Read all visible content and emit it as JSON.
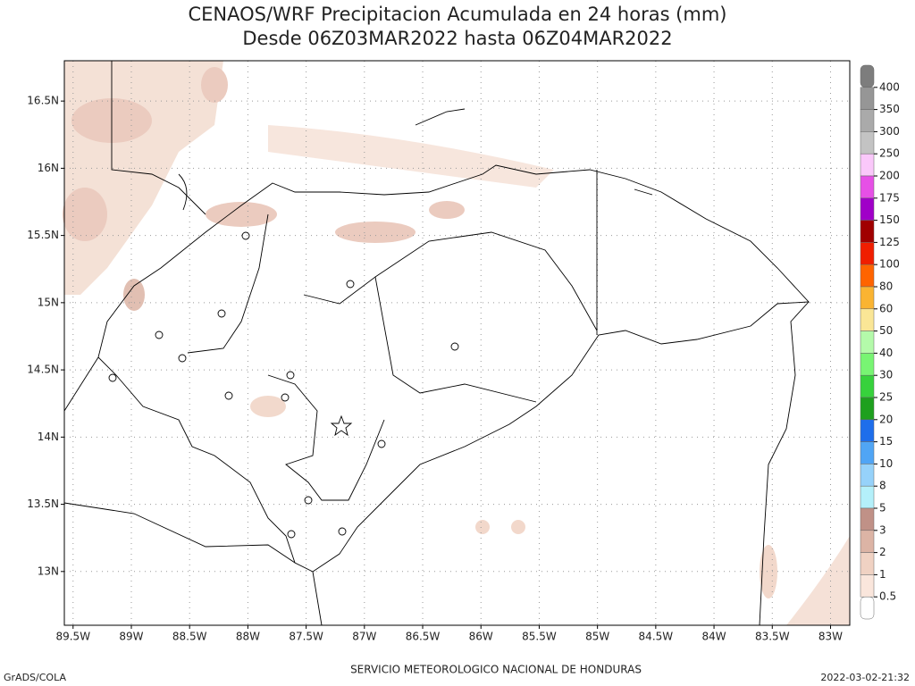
{
  "map": {
    "title": "CENAOS/WRF Precipitacion Acumulada en 24 horas (mm)",
    "subtitle": "Desde 06Z03MAR2022 hasta 06Z04MAR2022",
    "xlim": [
      -89.575,
      -82.835
    ],
    "ylim": [
      12.6,
      16.8
    ],
    "xticks": [
      {
        "value": -89.5,
        "label": "89.5W"
      },
      {
        "value": -89,
        "label": "89W"
      },
      {
        "value": -88.5,
        "label": "88.5W"
      },
      {
        "value": -88,
        "label": "88W"
      },
      {
        "value": -87.5,
        "label": "87.5W"
      },
      {
        "value": -87,
        "label": "87W"
      },
      {
        "value": -86.5,
        "label": "86.5W"
      },
      {
        "value": -86,
        "label": "86W"
      },
      {
        "value": -85.5,
        "label": "85.5W"
      },
      {
        "value": -85,
        "label": "85W"
      },
      {
        "value": -84.5,
        "label": "84.5W"
      },
      {
        "value": -84,
        "label": "84W"
      },
      {
        "value": -83.5,
        "label": "83.5W"
      },
      {
        "value": -83,
        "label": "83W"
      }
    ],
    "yticks": [
      {
        "value": 13,
        "label": "13N"
      },
      {
        "value": 13.5,
        "label": "13.5N"
      },
      {
        "value": 14,
        "label": "14N"
      },
      {
        "value": 14.5,
        "label": "14.5N"
      },
      {
        "value": 15,
        "label": "15N"
      },
      {
        "value": 15.5,
        "label": "15.5N"
      },
      {
        "value": 16,
        "label": "16N"
      },
      {
        "value": 16.5,
        "label": "16.5N"
      }
    ],
    "grid": true,
    "colorbar": {
      "levels": [
        400,
        350,
        300,
        250,
        200,
        175,
        150,
        125,
        100,
        80,
        60,
        50,
        40,
        30,
        25,
        20,
        15,
        10,
        8,
        5,
        3,
        2,
        1,
        0.5
      ],
      "colors": [
        "#7d7d7d",
        "#969696",
        "#aaaaaa",
        "#c3c3c3",
        "#fac8fa",
        "#e650e6",
        "#a000c8",
        "#a00000",
        "#f01e00",
        "#ff6400",
        "#fab432",
        "#fae696",
        "#b4faaa",
        "#78f573",
        "#37d23c",
        "#1ea01e",
        "#1e6eeb",
        "#50a5f5",
        "#96d2fa",
        "#b4f0fa",
        "#c09187",
        "#dcb4a5",
        "#f0d2c3",
        "#fae6dc",
        "#ffffff"
      ]
    },
    "footer_left": "GrADS/COLA",
    "footer_center": "SERVICIO METEOROLOGICO NACIONAL DE HONDURAS",
    "footer_right": "2022-03-02-21:32"
  }
}
